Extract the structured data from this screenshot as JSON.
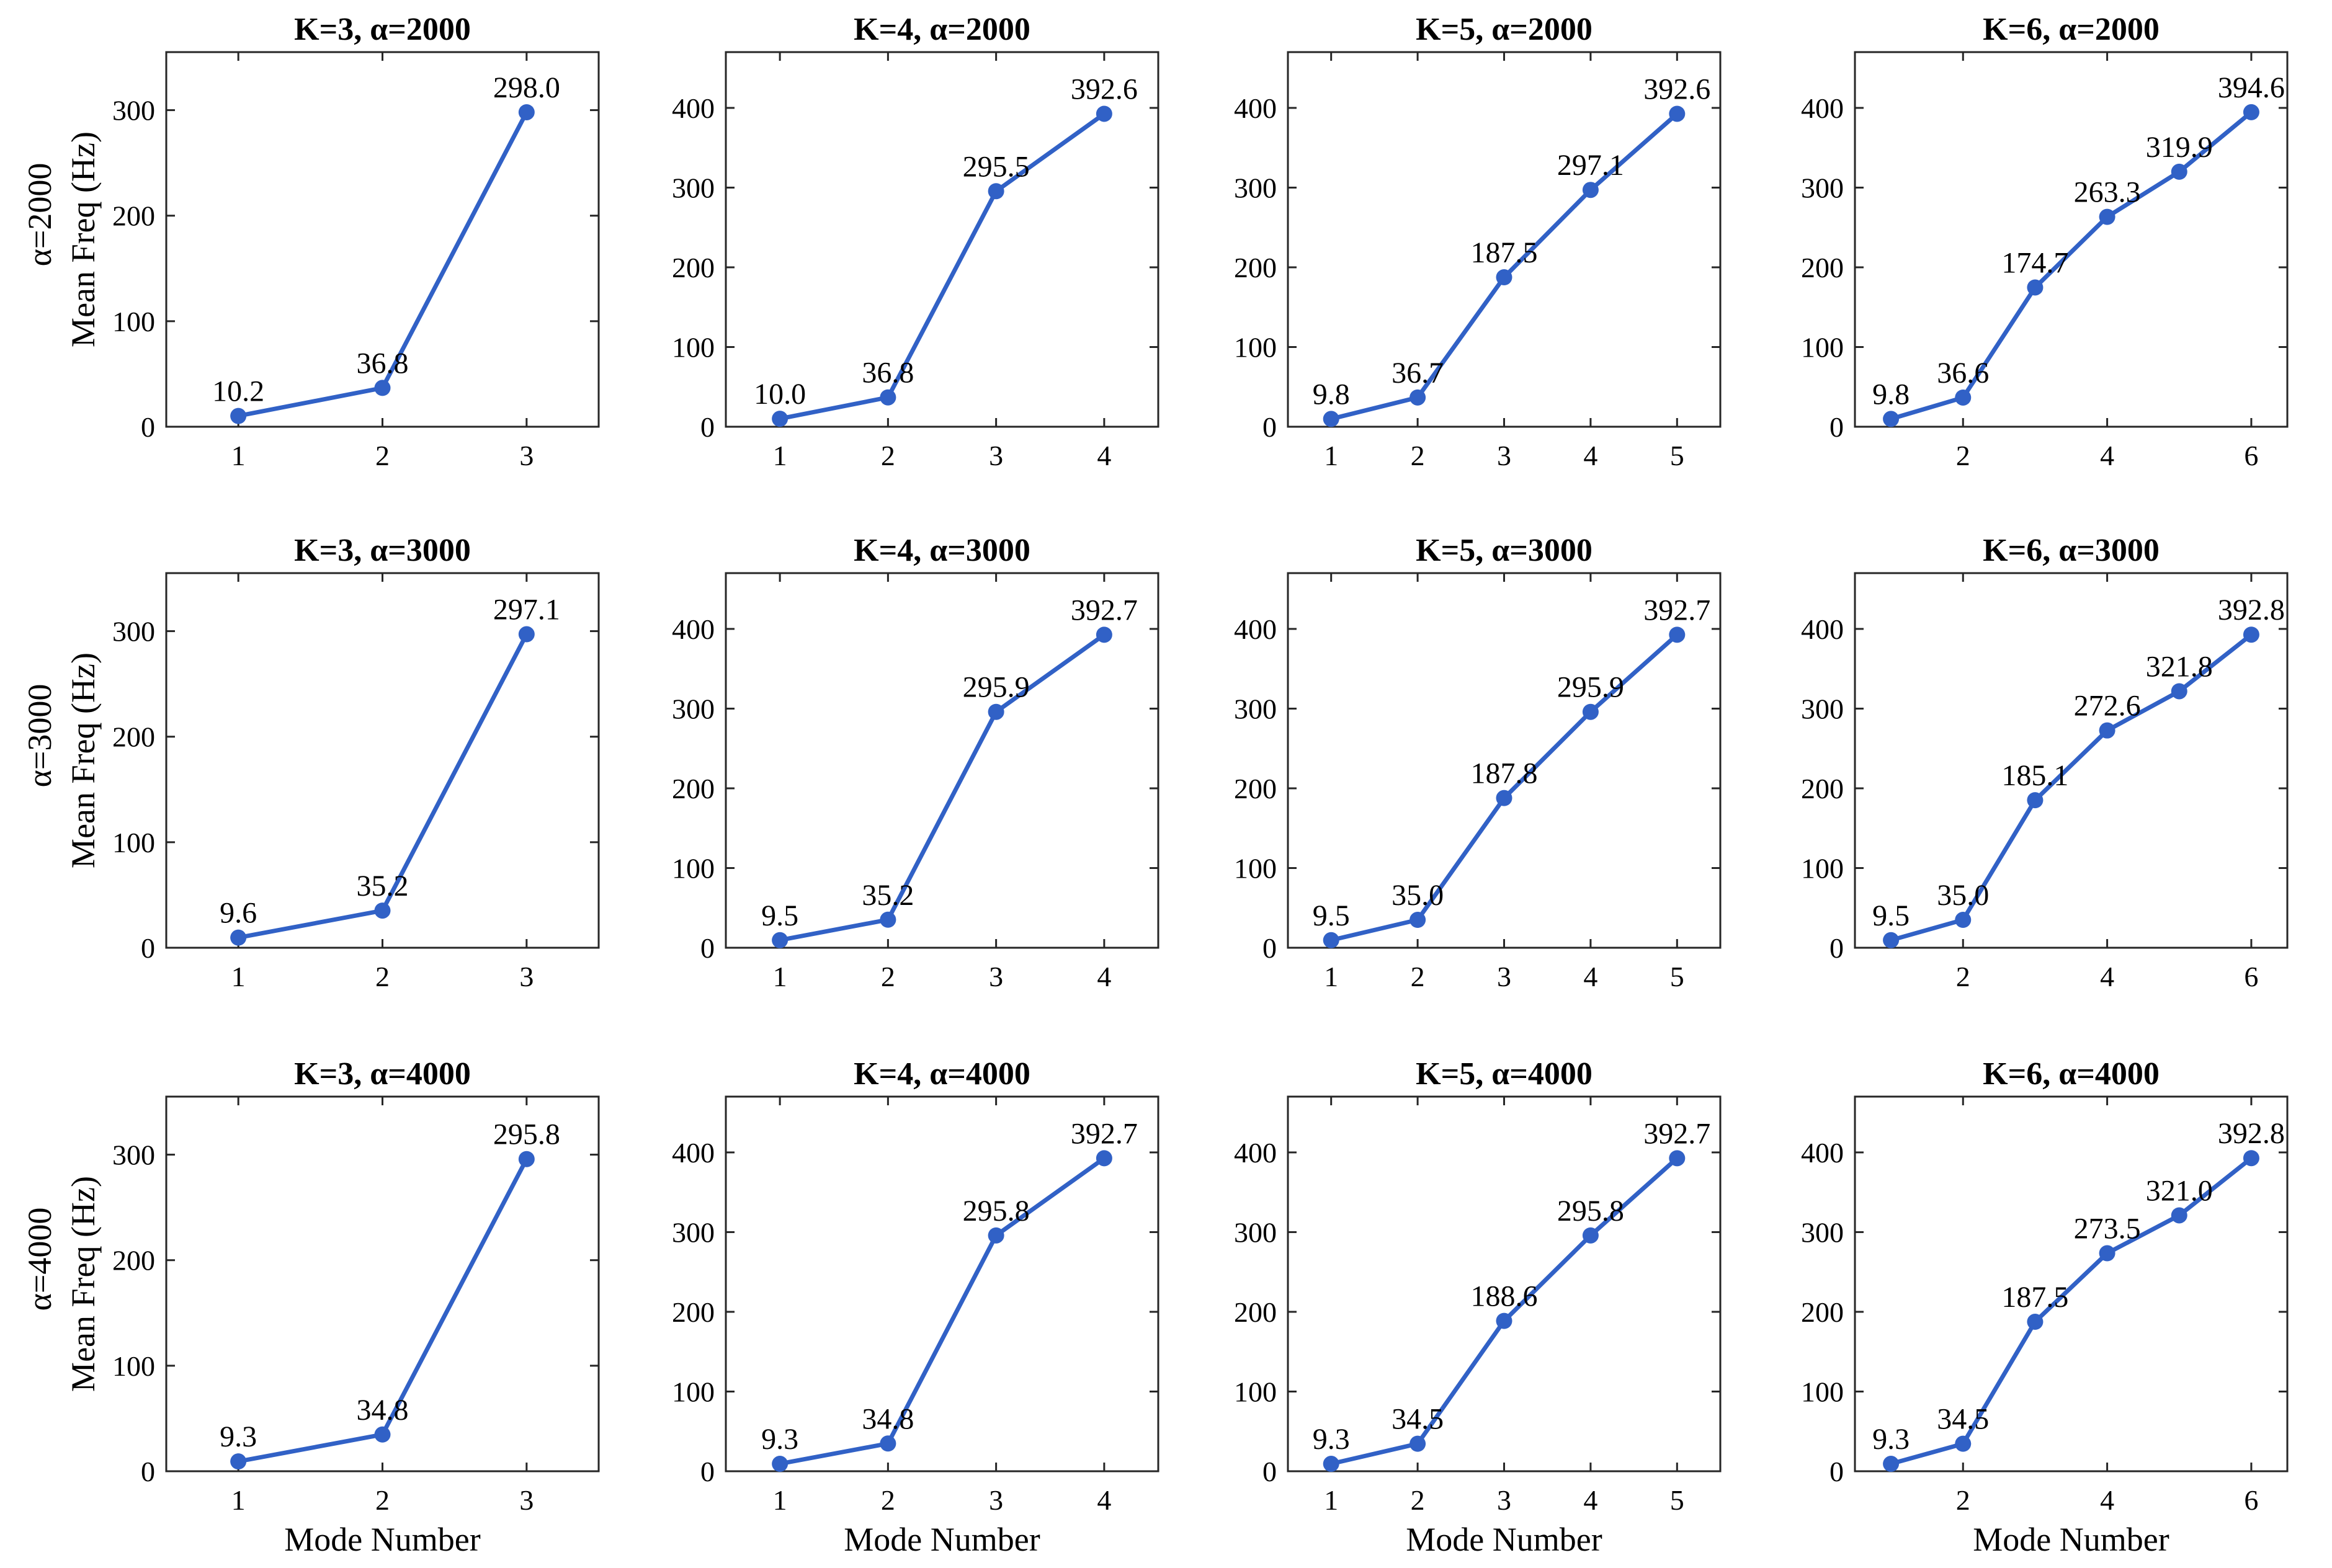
{
  "figure": {
    "xlabel": "Mode Number",
    "ylabel": "Mean Freq (Hz)",
    "row_labels": [
      "α=2000",
      "α=3000",
      "α=4000"
    ]
  },
  "colors": {
    "series": "#3161c6",
    "axes": "#262626",
    "background": "#ffffff"
  },
  "chart_data": [
    {
      "type": "line",
      "title": "K=3, α=2000",
      "xlabel": "",
      "ylabel": "Mean Freq (Hz)",
      "x": [
        1,
        2,
        3
      ],
      "values": [
        10.2,
        36.8,
        298.0
      ],
      "labels": [
        "10.2",
        "36.8",
        "298.0"
      ],
      "xlim": [
        0.5,
        3.5
      ],
      "ylim": [
        0,
        355
      ],
      "yticks": [
        0,
        100,
        200,
        300
      ],
      "xticks": [
        1,
        2,
        3
      ]
    },
    {
      "type": "line",
      "title": "K=4, α=2000",
      "xlabel": "",
      "ylabel": "",
      "x": [
        1,
        2,
        3,
        4
      ],
      "values": [
        10.0,
        36.8,
        295.5,
        392.6
      ],
      "labels": [
        "10.0",
        "36.8",
        "295.5",
        "392.6"
      ],
      "xlim": [
        0.5,
        4.5
      ],
      "ylim": [
        0,
        470
      ],
      "yticks": [
        0,
        100,
        200,
        300,
        400
      ],
      "xticks": [
        1,
        2,
        3,
        4
      ]
    },
    {
      "type": "line",
      "title": "K=5, α=2000",
      "xlabel": "",
      "ylabel": "",
      "x": [
        1,
        2,
        3,
        4,
        5
      ],
      "values": [
        9.8,
        36.7,
        187.5,
        297.1,
        392.6
      ],
      "labels": [
        "9.8",
        "36.7",
        "187.5",
        "297.1",
        "392.6"
      ],
      "xlim": [
        0.5,
        5.5
      ],
      "ylim": [
        0,
        470
      ],
      "yticks": [
        0,
        100,
        200,
        300,
        400
      ],
      "xticks": [
        1,
        2,
        3,
        4,
        5
      ]
    },
    {
      "type": "line",
      "title": "K=6, α=2000",
      "xlabel": "",
      "ylabel": "",
      "x": [
        1,
        2,
        3,
        4,
        5,
        6
      ],
      "values": [
        9.8,
        36.6,
        174.7,
        263.3,
        319.9,
        394.6
      ],
      "labels": [
        "9.8",
        "36.6",
        "174.7",
        "263.3",
        "319.9",
        "394.6"
      ],
      "xlim": [
        0.5,
        6.5
      ],
      "ylim": [
        0,
        470
      ],
      "yticks": [
        0,
        100,
        200,
        300,
        400
      ],
      "xticks": [
        2,
        4,
        6
      ]
    },
    {
      "type": "line",
      "title": "K=3, α=3000",
      "xlabel": "",
      "ylabel": "Mean Freq (Hz)",
      "x": [
        1,
        2,
        3
      ],
      "values": [
        9.6,
        35.2,
        297.1
      ],
      "labels": [
        "9.6",
        "35.2",
        "297.1"
      ],
      "xlim": [
        0.5,
        3.5
      ],
      "ylim": [
        0,
        355
      ],
      "yticks": [
        0,
        100,
        200,
        300
      ],
      "xticks": [
        1,
        2,
        3
      ]
    },
    {
      "type": "line",
      "title": "K=4, α=3000",
      "xlabel": "",
      "ylabel": "",
      "x": [
        1,
        2,
        3,
        4
      ],
      "values": [
        9.5,
        35.2,
        295.9,
        392.7
      ],
      "labels": [
        "9.5",
        "35.2",
        "295.9",
        "392.7"
      ],
      "xlim": [
        0.5,
        4.5
      ],
      "ylim": [
        0,
        470
      ],
      "yticks": [
        0,
        100,
        200,
        300,
        400
      ],
      "xticks": [
        1,
        2,
        3,
        4
      ]
    },
    {
      "type": "line",
      "title": "K=5, α=3000",
      "xlabel": "",
      "ylabel": "",
      "x": [
        1,
        2,
        3,
        4,
        5
      ],
      "values": [
        9.5,
        35.0,
        187.8,
        295.9,
        392.7
      ],
      "labels": [
        "9.5",
        "35.0",
        "187.8",
        "295.9",
        "392.7"
      ],
      "xlim": [
        0.5,
        5.5
      ],
      "ylim": [
        0,
        470
      ],
      "yticks": [
        0,
        100,
        200,
        300,
        400
      ],
      "xticks": [
        1,
        2,
        3,
        4,
        5
      ]
    },
    {
      "type": "line",
      "title": "K=6, α=3000",
      "xlabel": "",
      "ylabel": "",
      "x": [
        1,
        2,
        3,
        4,
        5,
        6
      ],
      "values": [
        9.5,
        35.0,
        185.1,
        272.6,
        321.8,
        392.8
      ],
      "labels": [
        "9.5",
        "35.0",
        "185.1",
        "272.6",
        "321.8",
        "392.8"
      ],
      "xlim": [
        0.5,
        6.5
      ],
      "ylim": [
        0,
        470
      ],
      "yticks": [
        0,
        100,
        200,
        300,
        400
      ],
      "xticks": [
        2,
        4,
        6
      ]
    },
    {
      "type": "line",
      "title": "K=3, α=4000",
      "xlabel": "Mode Number",
      "ylabel": "Mean Freq (Hz)",
      "x": [
        1,
        2,
        3
      ],
      "values": [
        9.3,
        34.8,
        295.8
      ],
      "labels": [
        "9.3",
        "34.8",
        "295.8"
      ],
      "xlim": [
        0.5,
        3.5
      ],
      "ylim": [
        0,
        355
      ],
      "yticks": [
        0,
        100,
        200,
        300
      ],
      "xticks": [
        1,
        2,
        3
      ]
    },
    {
      "type": "line",
      "title": "K=4, α=4000",
      "xlabel": "Mode Number",
      "ylabel": "",
      "x": [
        1,
        2,
        3,
        4
      ],
      "values": [
        9.3,
        34.8,
        295.8,
        392.7
      ],
      "labels": [
        "9.3",
        "34.8",
        "295.8",
        "392.7"
      ],
      "xlim": [
        0.5,
        4.5
      ],
      "ylim": [
        0,
        470
      ],
      "yticks": [
        0,
        100,
        200,
        300,
        400
      ],
      "xticks": [
        1,
        2,
        3,
        4
      ]
    },
    {
      "type": "line",
      "title": "K=5, α=4000",
      "xlabel": "Mode Number",
      "ylabel": "",
      "x": [
        1,
        2,
        3,
        4,
        5
      ],
      "values": [
        9.3,
        34.5,
        188.6,
        295.8,
        392.7
      ],
      "labels": [
        "9.3",
        "34.5",
        "188.6",
        "295.8",
        "392.7"
      ],
      "xlim": [
        0.5,
        5.5
      ],
      "ylim": [
        0,
        470
      ],
      "yticks": [
        0,
        100,
        200,
        300,
        400
      ],
      "xticks": [
        1,
        2,
        3,
        4,
        5
      ]
    },
    {
      "type": "line",
      "title": "K=6, α=4000",
      "xlabel": "Mode Number",
      "ylabel": "",
      "x": [
        1,
        2,
        3,
        4,
        5,
        6
      ],
      "values": [
        9.3,
        34.5,
        187.5,
        273.5,
        321.0,
        392.8
      ],
      "labels": [
        "9.3",
        "34.5",
        "187.5",
        "273.5",
        "321.0",
        "392.8"
      ],
      "xlim": [
        0.5,
        6.5
      ],
      "ylim": [
        0,
        470
      ],
      "yticks": [
        0,
        100,
        200,
        300,
        400
      ],
      "xticks": [
        2,
        4,
        6
      ]
    }
  ]
}
